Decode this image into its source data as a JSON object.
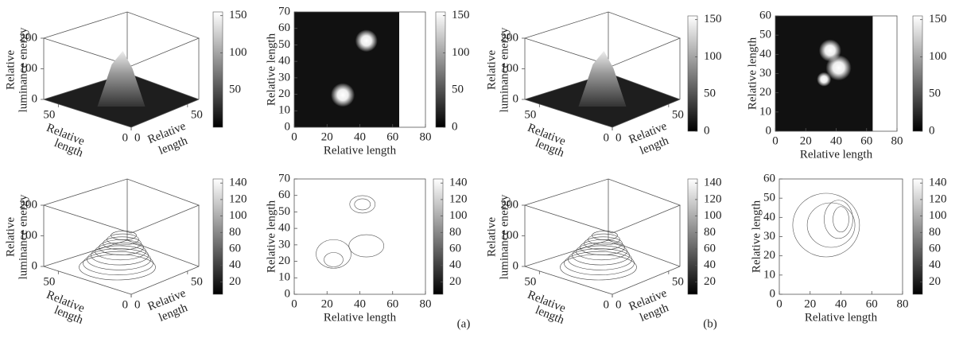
{
  "chart_data": [
    {
      "type": "surface3d",
      "zlabel": [
        "Relative",
        "luminance energy"
      ],
      "xlabel": [
        "Relative",
        "length"
      ],
      "ylabel": [
        "Relative",
        "length"
      ],
      "zlim": [
        0,
        200
      ],
      "zticks": [
        0,
        100,
        200
      ],
      "xlim": [
        0,
        60
      ],
      "xticks": [
        0,
        50
      ],
      "ylim": [
        0,
        60
      ],
      "yticks": [
        0,
        50
      ],
      "colorbar": {
        "lim": [
          0,
          155
        ],
        "ticks": [
          50,
          100,
          150
        ]
      }
    },
    {
      "type": "image",
      "xlabel": "Relative length",
      "ylabel": "Relative length",
      "xlim": [
        0,
        80
      ],
      "xticks": [
        0,
        20,
        40,
        60,
        80
      ],
      "ylim": [
        0,
        70
      ],
      "yticks": [
        0,
        10,
        20,
        30,
        40,
        50,
        60,
        70
      ],
      "colorbar": {
        "lim": [
          0,
          155
        ],
        "ticks": [
          0,
          50,
          100,
          150
        ]
      }
    },
    {
      "type": "surface3d",
      "zlabel": [
        "Relative",
        "luminance energy"
      ],
      "xlabel": [
        "Relative",
        "length"
      ],
      "ylabel": [
        "Relative",
        "length"
      ],
      "zlim": [
        0,
        200
      ],
      "zticks": [
        0,
        100,
        200
      ],
      "xlim": [
        0,
        60
      ],
      "xticks": [
        0,
        50
      ],
      "ylim": [
        0,
        60
      ],
      "yticks": [
        0,
        50
      ],
      "colorbar": {
        "lim": [
          0,
          155
        ],
        "ticks": [
          0,
          50,
          100,
          150
        ]
      }
    },
    {
      "type": "image",
      "xlabel": "Relative length",
      "ylabel": "Relative length",
      "xlim": [
        0,
        80
      ],
      "xticks": [
        0,
        20,
        40,
        60,
        80
      ],
      "ylim": [
        0,
        60
      ],
      "yticks": [
        0,
        10,
        20,
        30,
        40,
        50,
        60
      ],
      "colorbar": {
        "lim": [
          0,
          155
        ],
        "ticks": [
          0,
          50,
          100,
          150
        ]
      }
    },
    {
      "type": "contour3d",
      "zlabel": [
        "Relative",
        "luminance energy"
      ],
      "xlabel": [
        "Relative",
        "length"
      ],
      "ylabel": [
        "Relative",
        "length"
      ],
      "zlim": [
        0,
        200
      ],
      "zticks": [
        0,
        100,
        200
      ],
      "xlim": [
        0,
        60
      ],
      "xticks": [
        0,
        50
      ],
      "ylim": [
        0,
        60
      ],
      "yticks": [
        0,
        50
      ],
      "colorbar": {
        "lim": [
          5,
          145
        ],
        "ticks": [
          20,
          40,
          60,
          80,
          100,
          120,
          140
        ]
      }
    },
    {
      "type": "contour",
      "xlabel": "Relative length",
      "ylabel": "Relative length",
      "xlim": [
        0,
        80
      ],
      "xticks": [
        0,
        20,
        40,
        60,
        80
      ],
      "ylim": [
        0,
        70
      ],
      "yticks": [
        0,
        10,
        20,
        30,
        40,
        50,
        60,
        70
      ],
      "colorbar": {
        "lim": [
          5,
          145
        ],
        "ticks": [
          20,
          40,
          60,
          80,
          100,
          120,
          140
        ]
      }
    },
    {
      "type": "contour3d",
      "zlabel": [
        "Relative",
        "luminance energy"
      ],
      "xlabel": [
        "Relative",
        "length"
      ],
      "ylabel": [
        "Relative",
        "length"
      ],
      "zlim": [
        0,
        200
      ],
      "zticks": [
        0,
        100,
        200
      ],
      "xlim": [
        0,
        60
      ],
      "xticks": [
        0,
        50
      ],
      "ylim": [
        0,
        60
      ],
      "yticks": [
        0,
        50
      ],
      "colorbar": {
        "lim": [
          5,
          145
        ],
        "ticks": [
          20,
          40,
          60,
          80,
          100,
          120,
          140
        ]
      }
    },
    {
      "type": "contour",
      "xlabel": "Relative length",
      "ylabel": "Relative length",
      "xlim": [
        0,
        80
      ],
      "xticks": [
        0,
        20,
        40,
        60,
        80
      ],
      "ylim": [
        0,
        60
      ],
      "yticks": [
        0,
        10,
        20,
        30,
        40,
        50,
        60
      ],
      "colorbar": {
        "lim": [
          5,
          145
        ],
        "ticks": [
          20,
          40,
          60,
          80,
          100,
          120,
          140
        ]
      }
    }
  ],
  "captions": [
    "(a)",
    "(b)"
  ]
}
